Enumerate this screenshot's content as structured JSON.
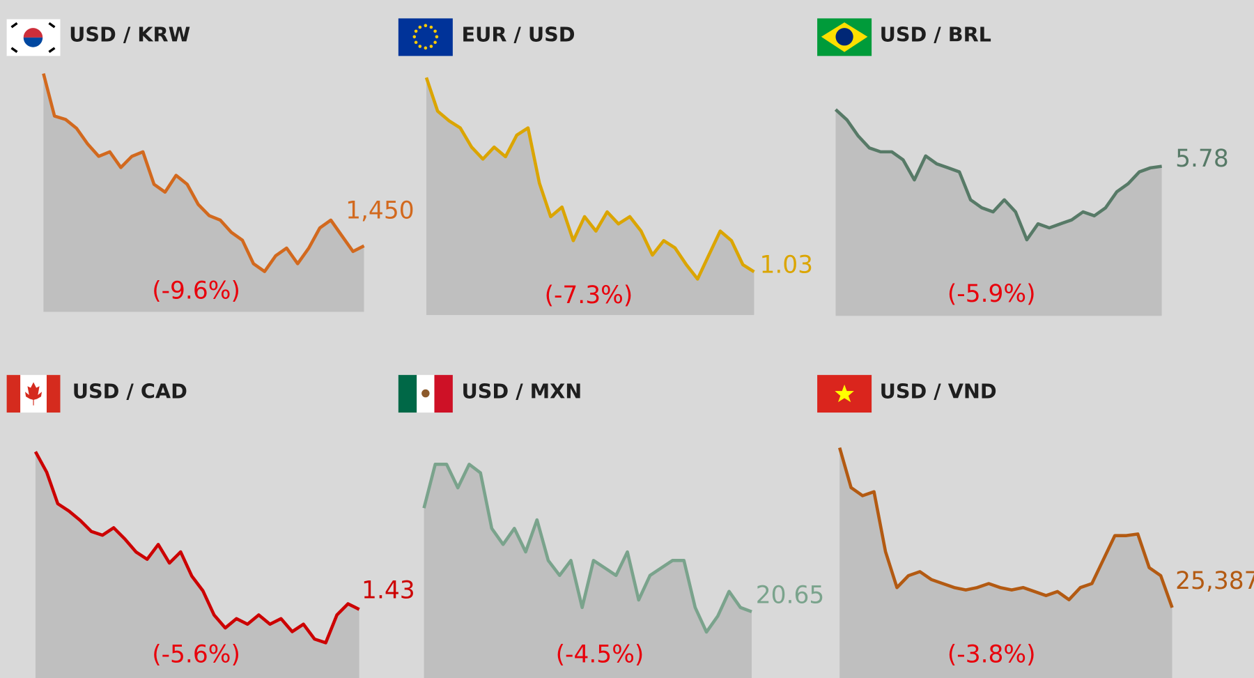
{
  "chart_data": [
    {
      "type": "line",
      "title": "USD / KRW",
      "color": "#d2691e",
      "ylim": [
        1391,
        1604
      ],
      "annotation": "(-9.6%)",
      "values": [
        1604,
        1566,
        1563,
        1555,
        1541,
        1530,
        1534,
        1520,
        1530,
        1534,
        1505,
        1498,
        1513,
        1505,
        1487,
        1477,
        1473,
        1462,
        1455,
        1434,
        1427,
        1441,
        1448,
        1434,
        1448,
        1466,
        1473,
        1459,
        1445,
        1450
      ],
      "value_labels": [
        null,
        null,
        null,
        null,
        null,
        null,
        null,
        null,
        null,
        null,
        null,
        null,
        null,
        null,
        null,
        null,
        null,
        null,
        null,
        null,
        null,
        null,
        null,
        null,
        null,
        null,
        null,
        null,
        null,
        "1,450"
      ]
    },
    {
      "type": "line",
      "title": "EUR / USD",
      "color": "#dba500",
      "ylim": [
        1.012,
        1.111
      ],
      "annotation": "(-7.3%)",
      "values": [
        1.111,
        1.097,
        1.093,
        1.09,
        1.082,
        1.077,
        1.082,
        1.078,
        1.087,
        1.09,
        1.067,
        1.053,
        1.057,
        1.043,
        1.053,
        1.047,
        1.055,
        1.05,
        1.053,
        1.047,
        1.037,
        1.043,
        1.04,
        1.033,
        1.027,
        1.037,
        1.047,
        1.043,
        1.033,
        1.03
      ]
    },
    {
      "type": "line",
      "title": "USD / BRL",
      "color": "#577a67",
      "ylim": [
        4.826,
        6.142
      ],
      "annotation": "(-5.9%)",
      "values": [
        6.142,
        6.076,
        5.974,
        5.897,
        5.872,
        5.872,
        5.821,
        5.693,
        5.846,
        5.795,
        5.77,
        5.744,
        5.566,
        5.515,
        5.489,
        5.566,
        5.489,
        5.311,
        5.413,
        5.387,
        5.413,
        5.438,
        5.489,
        5.464,
        5.515,
        5.617,
        5.668,
        5.744,
        5.77,
        5.78
      ]
    },
    {
      "type": "line",
      "title": "USD / CAD",
      "color": "#cc0000",
      "ylim": [
        1.393,
        1.515
      ],
      "annotation": "(-5.6%)",
      "values": [
        1.515,
        1.504,
        1.487,
        1.483,
        1.478,
        1.472,
        1.47,
        1.474,
        1.468,
        1.461,
        1.457,
        1.465,
        1.455,
        1.461,
        1.448,
        1.44,
        1.427,
        1.42,
        1.425,
        1.422,
        1.427,
        1.422,
        1.425,
        1.418,
        1.422,
        1.414,
        1.412,
        1.427,
        1.433,
        1.43
      ]
    },
    {
      "type": "line",
      "title": "USD / MXN",
      "color": "#7aa38c",
      "ylim": [
        20.03,
        22.05
      ],
      "annotation": "(-4.5%)",
      "values": [
        21.62,
        22.03,
        22.03,
        21.81,
        22.03,
        21.95,
        21.43,
        21.28,
        21.43,
        21.21,
        21.51,
        21.13,
        20.99,
        21.13,
        20.69,
        21.13,
        21.06,
        20.99,
        21.21,
        20.76,
        20.99,
        21.06,
        21.13,
        21.13,
        20.69,
        20.46,
        20.61,
        20.84,
        20.69,
        20.65
      ]
    },
    {
      "type": "line",
      "title": "USD / VND",
      "color": "#b35a12",
      "ylim": [
        24946,
        26390
      ],
      "annotation": "(-3.8%)",
      "values": [
        26390,
        26140,
        26089,
        26114,
        25738,
        25513,
        25588,
        25613,
        25563,
        25538,
        25513,
        25498,
        25513,
        25538,
        25513,
        25498,
        25513,
        25488,
        25463,
        25488,
        25437,
        25513,
        25538,
        25688,
        25839,
        25839,
        25849,
        25638,
        25588,
        25387
      ],
      "value_labels": [
        null,
        null,
        null,
        null,
        null,
        null,
        null,
        null,
        null,
        null,
        null,
        null,
        null,
        null,
        null,
        null,
        null,
        null,
        null,
        null,
        null,
        null,
        null,
        null,
        null,
        null,
        null,
        null,
        null,
        "25,387"
      ]
    }
  ]
}
